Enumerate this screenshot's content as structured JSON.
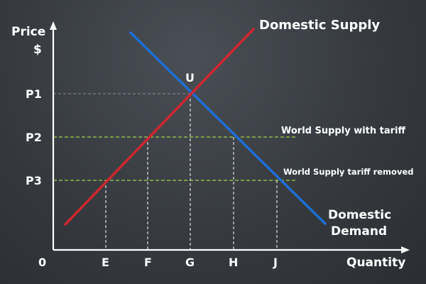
{
  "axes": {
    "y_label_line1": "Price",
    "y_label_line2": "$",
    "x_label": "Quantity",
    "origin": "0"
  },
  "price_levels": [
    {
      "label": "P1"
    },
    {
      "label": "P2"
    },
    {
      "label": "P3"
    }
  ],
  "quantity_marks": [
    {
      "label": "E"
    },
    {
      "label": "F"
    },
    {
      "label": "G"
    },
    {
      "label": "H"
    },
    {
      "label": "J"
    }
  ],
  "curves": {
    "supply_label": "Domestic Supply",
    "demand_label_line1": "Domestic",
    "demand_label_line2": "Demand",
    "supply_color": "#d0262f",
    "demand_color": "#1c6fd6"
  },
  "equilibrium_label": "U",
  "world_lines": {
    "with_tariff": "World Supply with tariff",
    "tariff_removed": "World Supply tariff removed",
    "color": "#9ed34a"
  }
}
